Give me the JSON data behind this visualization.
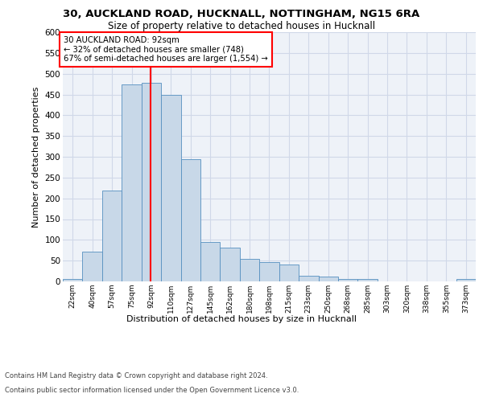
{
  "title_line1": "30, AUCKLAND ROAD, HUCKNALL, NOTTINGHAM, NG15 6RA",
  "title_line2": "Size of property relative to detached houses in Hucknall",
  "xlabel": "Distribution of detached houses by size in Hucknall",
  "ylabel": "Number of detached properties",
  "bin_labels": [
    "22sqm",
    "40sqm",
    "57sqm",
    "75sqm",
    "92sqm",
    "110sqm",
    "127sqm",
    "145sqm",
    "162sqm",
    "180sqm",
    "198sqm",
    "215sqm",
    "233sqm",
    "250sqm",
    "268sqm",
    "285sqm",
    "303sqm",
    "320sqm",
    "338sqm",
    "355sqm",
    "373sqm"
  ],
  "bar_heights": [
    5,
    72,
    219,
    475,
    479,
    450,
    295,
    95,
    81,
    54,
    47,
    41,
    13,
    12,
    5,
    5,
    0,
    0,
    0,
    0,
    5
  ],
  "bar_color": "#c8d8e8",
  "bar_edge_color": "#5590c0",
  "grid_color": "#d0d8e8",
  "background_color": "#eef2f8",
  "vline_color": "red",
  "annotation_text": "30 AUCKLAND ROAD: 92sqm\n← 32% of detached houses are smaller (748)\n67% of semi-detached houses are larger (1,554) →",
  "annotation_box_color": "white",
  "annotation_box_edge": "red",
  "ylim": [
    0,
    600
  ],
  "yticks": [
    0,
    50,
    100,
    150,
    200,
    250,
    300,
    350,
    400,
    450,
    500,
    550,
    600
  ],
  "footer_line1": "Contains HM Land Registry data © Crown copyright and database right 2024.",
  "footer_line2": "Contains public sector information licensed under the Open Government Licence v3.0.",
  "bin_width": 17.5,
  "bin_starts": [
    13.75,
    31.25,
    48.75,
    66.25,
    83.75,
    101.25,
    118.75,
    136.25,
    153.75,
    171.25,
    188.75,
    206.25,
    223.75,
    241.25,
    258.75,
    276.25,
    293.75,
    311.25,
    328.75,
    346.25,
    363.75
  ],
  "vline_x": 92.0
}
